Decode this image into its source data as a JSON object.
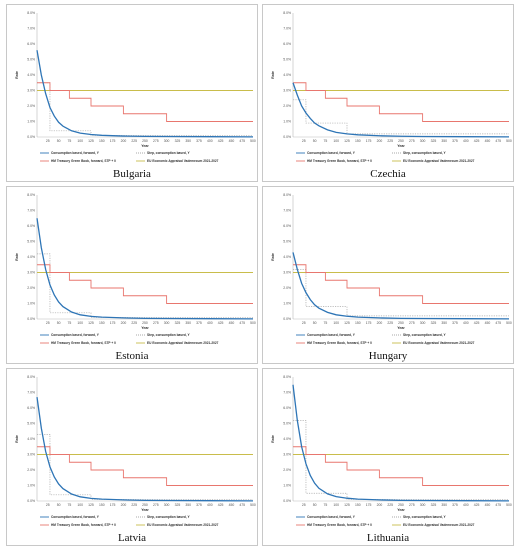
{
  "chart_data": [
    {
      "type": "line",
      "title": "Bulgaria",
      "xlabel": "Year",
      "ylabel": "Rate",
      "xlim": [
        0,
        500
      ],
      "ylim": [
        0,
        0.08
      ],
      "grid": false,
      "legend_position": "bottom",
      "x_ticks": [
        25,
        50,
        75,
        100,
        125,
        150,
        175,
        200,
        225,
        250,
        275,
        300,
        325,
        350,
        375,
        400,
        425,
        450,
        475,
        500
      ],
      "y_ticks": [
        "0.0%",
        "1.0%",
        "2.0%",
        "3.0%",
        "4.0%",
        "5.0%",
        "6.0%",
        "7.0%",
        "8.0%"
      ],
      "series": [
        {
          "name": "Consumption based, forward, Y",
          "color": "#2e75b6",
          "style": "solid",
          "x": [
            0,
            10,
            20,
            30,
            40,
            50,
            60,
            80,
            100,
            125,
            150,
            200,
            250,
            300,
            400,
            500
          ],
          "y": [
            0.056,
            0.04,
            0.028,
            0.019,
            0.0135,
            0.0095,
            0.007,
            0.004,
            0.0025,
            0.0016,
            0.0011,
            0.0006,
            0.0004,
            0.0003,
            0.0002,
            0.0001
          ]
        },
        {
          "name": "Step, consumption based, Y",
          "color": "#a9a9a9",
          "style": "dotted",
          "x": [
            0,
            30,
            30,
            125,
            125,
            500
          ],
          "y": [
            0.035,
            0.035,
            0.004,
            0.004,
            0.001,
            0.001
          ]
        },
        {
          "name": "HM Treasury Green Book, forward, STP + 0",
          "color": "#e8766e",
          "style": "solid",
          "x": [
            0,
            30,
            30,
            75,
            75,
            125,
            125,
            200,
            200,
            300,
            300,
            500
          ],
          "y": [
            0.035,
            0.035,
            0.03,
            0.03,
            0.025,
            0.025,
            0.02,
            0.02,
            0.015,
            0.015,
            0.01,
            0.01
          ]
        },
        {
          "name": "EU Economic Appraisal Vademecum 2021-2027",
          "color": "#c9bd4b",
          "style": "solid",
          "x": [
            0,
            500
          ],
          "y": [
            0.03,
            0.03
          ]
        }
      ]
    },
    {
      "type": "line",
      "title": "Czechia",
      "xlabel": "Year",
      "ylabel": "Rate",
      "xlim": [
        0,
        500
      ],
      "ylim": [
        0,
        0.08
      ],
      "grid": false,
      "legend_position": "bottom",
      "x_ticks": [
        25,
        50,
        75,
        100,
        125,
        150,
        175,
        200,
        225,
        250,
        275,
        300,
        325,
        350,
        375,
        400,
        425,
        450,
        475,
        500
      ],
      "y_ticks": [
        "0.0%",
        "1.0%",
        "2.0%",
        "3.0%",
        "4.0%",
        "5.0%",
        "6.0%",
        "7.0%",
        "8.0%"
      ],
      "series": [
        {
          "name": "Consumption based, forward, Y",
          "color": "#2e75b6",
          "style": "solid",
          "x": [
            0,
            10,
            20,
            30,
            40,
            50,
            60,
            80,
            100,
            125,
            150,
            200,
            250,
            300,
            400,
            500
          ],
          "y": [
            0.035,
            0.027,
            0.02,
            0.0155,
            0.012,
            0.009,
            0.0072,
            0.0046,
            0.003,
            0.002,
            0.0014,
            0.0008,
            0.0005,
            0.0003,
            0.0002,
            0.0001
          ]
        },
        {
          "name": "Step, consumption based, Y",
          "color": "#a9a9a9",
          "style": "dotted",
          "x": [
            0,
            30,
            30,
            125,
            125,
            500
          ],
          "y": [
            0.024,
            0.024,
            0.009,
            0.009,
            0.002,
            0.002
          ]
        },
        {
          "name": "HM Treasury Green Book, forward, STP + 0",
          "color": "#e8766e",
          "style": "solid",
          "x": [
            0,
            30,
            30,
            75,
            75,
            125,
            125,
            200,
            200,
            300,
            300,
            500
          ],
          "y": [
            0.035,
            0.035,
            0.03,
            0.03,
            0.025,
            0.025,
            0.02,
            0.02,
            0.015,
            0.015,
            0.01,
            0.01
          ]
        },
        {
          "name": "EU Economic Appraisal Vademecum 2021-2027",
          "color": "#c9bd4b",
          "style": "solid",
          "x": [
            0,
            500
          ],
          "y": [
            0.03,
            0.03
          ]
        }
      ]
    },
    {
      "type": "line",
      "title": "Estonia",
      "xlabel": "Year",
      "ylabel": "Rate",
      "xlim": [
        0,
        500
      ],
      "ylim": [
        0,
        0.08
      ],
      "grid": false,
      "legend_position": "bottom",
      "x_ticks": [
        25,
        50,
        75,
        100,
        125,
        150,
        175,
        200,
        225,
        250,
        275,
        300,
        325,
        350,
        375,
        400,
        425,
        450,
        475,
        500
      ],
      "y_ticks": [
        "0.0%",
        "1.0%",
        "2.0%",
        "3.0%",
        "4.0%",
        "5.0%",
        "6.0%",
        "7.0%",
        "8.0%"
      ],
      "series": [
        {
          "name": "Consumption based, forward, Y",
          "color": "#2e75b6",
          "style": "solid",
          "x": [
            0,
            10,
            20,
            30,
            40,
            50,
            60,
            80,
            100,
            125,
            150,
            200,
            250,
            300,
            400,
            500
          ],
          "y": [
            0.065,
            0.046,
            0.032,
            0.022,
            0.0155,
            0.011,
            0.008,
            0.0045,
            0.0027,
            0.0017,
            0.0012,
            0.0007,
            0.0004,
            0.0003,
            0.0002,
            0.0001
          ]
        },
        {
          "name": "Step, consumption based, Y",
          "color": "#a9a9a9",
          "style": "dotted",
          "x": [
            0,
            30,
            30,
            125,
            125,
            500
          ],
          "y": [
            0.042,
            0.042,
            0.004,
            0.004,
            0.001,
            0.001
          ]
        },
        {
          "name": "HM Treasury Green Book, forward, STP + 0",
          "color": "#e8766e",
          "style": "solid",
          "x": [
            0,
            30,
            30,
            75,
            75,
            125,
            125,
            200,
            200,
            300,
            300,
            500
          ],
          "y": [
            0.035,
            0.035,
            0.03,
            0.03,
            0.025,
            0.025,
            0.02,
            0.02,
            0.015,
            0.015,
            0.01,
            0.01
          ]
        },
        {
          "name": "EU Economic Appraisal Vademecum 2021-2027",
          "color": "#c9bd4b",
          "style": "solid",
          "x": [
            0,
            500
          ],
          "y": [
            0.03,
            0.03
          ]
        }
      ]
    },
    {
      "type": "line",
      "title": "Hungary",
      "xlabel": "Year",
      "ylabel": "Rate",
      "xlim": [
        0,
        500
      ],
      "ylim": [
        0,
        0.08
      ],
      "grid": false,
      "legend_position": "bottom",
      "x_ticks": [
        25,
        50,
        75,
        100,
        125,
        150,
        175,
        200,
        225,
        250,
        275,
        300,
        325,
        350,
        375,
        400,
        425,
        450,
        475,
        500
      ],
      "y_ticks": [
        "0.0%",
        "1.0%",
        "2.0%",
        "3.0%",
        "4.0%",
        "5.0%",
        "6.0%",
        "7.0%",
        "8.0%"
      ],
      "series": [
        {
          "name": "Consumption based, forward, Y",
          "color": "#2e75b6",
          "style": "solid",
          "x": [
            0,
            10,
            20,
            30,
            40,
            50,
            60,
            80,
            100,
            125,
            150,
            200,
            250,
            300,
            400,
            500
          ],
          "y": [
            0.043,
            0.032,
            0.023,
            0.017,
            0.0125,
            0.0092,
            0.007,
            0.0043,
            0.0027,
            0.0018,
            0.0012,
            0.0007,
            0.0004,
            0.0003,
            0.0002,
            0.0001
          ]
        },
        {
          "name": "Step, consumption based, Y",
          "color": "#a9a9a9",
          "style": "dotted",
          "x": [
            0,
            30,
            30,
            125,
            125,
            500
          ],
          "y": [
            0.032,
            0.032,
            0.008,
            0.008,
            0.002,
            0.002
          ]
        },
        {
          "name": "HM Treasury Green Book, forward, STP + 0",
          "color": "#e8766e",
          "style": "solid",
          "x": [
            0,
            30,
            30,
            75,
            75,
            125,
            125,
            200,
            200,
            300,
            300,
            500
          ],
          "y": [
            0.035,
            0.035,
            0.03,
            0.03,
            0.025,
            0.025,
            0.02,
            0.02,
            0.015,
            0.015,
            0.01,
            0.01
          ]
        },
        {
          "name": "EU Economic Appraisal Vademecum 2021-2027",
          "color": "#c9bd4b",
          "style": "solid",
          "x": [
            0,
            500
          ],
          "y": [
            0.03,
            0.03
          ]
        }
      ]
    },
    {
      "type": "line",
      "title": "Latvia",
      "xlabel": "Year",
      "ylabel": "Rate",
      "xlim": [
        0,
        500
      ],
      "ylim": [
        0,
        0.08
      ],
      "grid": false,
      "legend_position": "bottom",
      "x_ticks": [
        25,
        50,
        75,
        100,
        125,
        150,
        175,
        200,
        225,
        250,
        275,
        300,
        325,
        350,
        375,
        400,
        425,
        450,
        475,
        500
      ],
      "y_ticks": [
        "0.0%",
        "1.0%",
        "2.0%",
        "3.0%",
        "4.0%",
        "5.0%",
        "6.0%",
        "7.0%",
        "8.0%"
      ],
      "series": [
        {
          "name": "Consumption based, forward, Y",
          "color": "#2e75b6",
          "style": "solid",
          "x": [
            0,
            10,
            20,
            30,
            40,
            50,
            60,
            80,
            100,
            125,
            150,
            200,
            250,
            300,
            400,
            500
          ],
          "y": [
            0.067,
            0.047,
            0.032,
            0.022,
            0.0155,
            0.011,
            0.008,
            0.0045,
            0.0027,
            0.0017,
            0.0012,
            0.0007,
            0.0004,
            0.0003,
            0.0002,
            0.0001
          ]
        },
        {
          "name": "Step, consumption based, Y",
          "color": "#a9a9a9",
          "style": "dotted",
          "x": [
            0,
            30,
            30,
            125,
            125,
            500
          ],
          "y": [
            0.043,
            0.043,
            0.004,
            0.004,
            0.001,
            0.001
          ]
        },
        {
          "name": "HM Treasury Green Book, forward, STP + 0",
          "color": "#e8766e",
          "style": "solid",
          "x": [
            0,
            30,
            30,
            75,
            75,
            125,
            125,
            200,
            200,
            300,
            300,
            500
          ],
          "y": [
            0.035,
            0.035,
            0.03,
            0.03,
            0.025,
            0.025,
            0.02,
            0.02,
            0.015,
            0.015,
            0.01,
            0.01
          ]
        },
        {
          "name": "EU Economic Appraisal Vademecum 2021-2027",
          "color": "#c9bd4b",
          "style": "solid",
          "x": [
            0,
            500
          ],
          "y": [
            0.03,
            0.03
          ]
        }
      ]
    },
    {
      "type": "line",
      "title": "Lithuania",
      "xlabel": "Year",
      "ylabel": "Rate",
      "xlim": [
        0,
        500
      ],
      "ylim": [
        0,
        0.08
      ],
      "grid": false,
      "legend_position": "bottom",
      "x_ticks": [
        25,
        50,
        75,
        100,
        125,
        150,
        175,
        200,
        225,
        250,
        275,
        300,
        325,
        350,
        375,
        400,
        425,
        450,
        475,
        500
      ],
      "y_ticks": [
        "0.0%",
        "1.0%",
        "2.0%",
        "3.0%",
        "4.0%",
        "5.0%",
        "6.0%",
        "7.0%",
        "8.0%"
      ],
      "series": [
        {
          "name": "Consumption based, forward, Y",
          "color": "#2e75b6",
          "style": "solid",
          "x": [
            0,
            10,
            20,
            30,
            40,
            50,
            60,
            80,
            100,
            125,
            150,
            200,
            250,
            300,
            400,
            500
          ],
          "y": [
            0.075,
            0.052,
            0.035,
            0.024,
            0.0165,
            0.0115,
            0.0082,
            0.0046,
            0.0028,
            0.0018,
            0.0012,
            0.0007,
            0.0004,
            0.0003,
            0.0002,
            0.0001
          ]
        },
        {
          "name": "Step, consumption based, Y",
          "color": "#a9a9a9",
          "style": "dotted",
          "x": [
            0,
            30,
            30,
            125,
            125,
            500
          ],
          "y": [
            0.052,
            0.052,
            0.005,
            0.005,
            0.001,
            0.001
          ]
        },
        {
          "name": "HM Treasury Green Book, forward, STP + 0",
          "color": "#e8766e",
          "style": "solid",
          "x": [
            0,
            30,
            30,
            75,
            75,
            125,
            125,
            200,
            200,
            300,
            300,
            500
          ],
          "y": [
            0.035,
            0.035,
            0.03,
            0.03,
            0.025,
            0.025,
            0.02,
            0.02,
            0.015,
            0.015,
            0.01,
            0.01
          ]
        },
        {
          "name": "EU Economic Appraisal Vademecum 2021-2027",
          "color": "#c9bd4b",
          "style": "solid",
          "x": [
            0,
            500
          ],
          "y": [
            0.03,
            0.03
          ]
        }
      ]
    }
  ]
}
